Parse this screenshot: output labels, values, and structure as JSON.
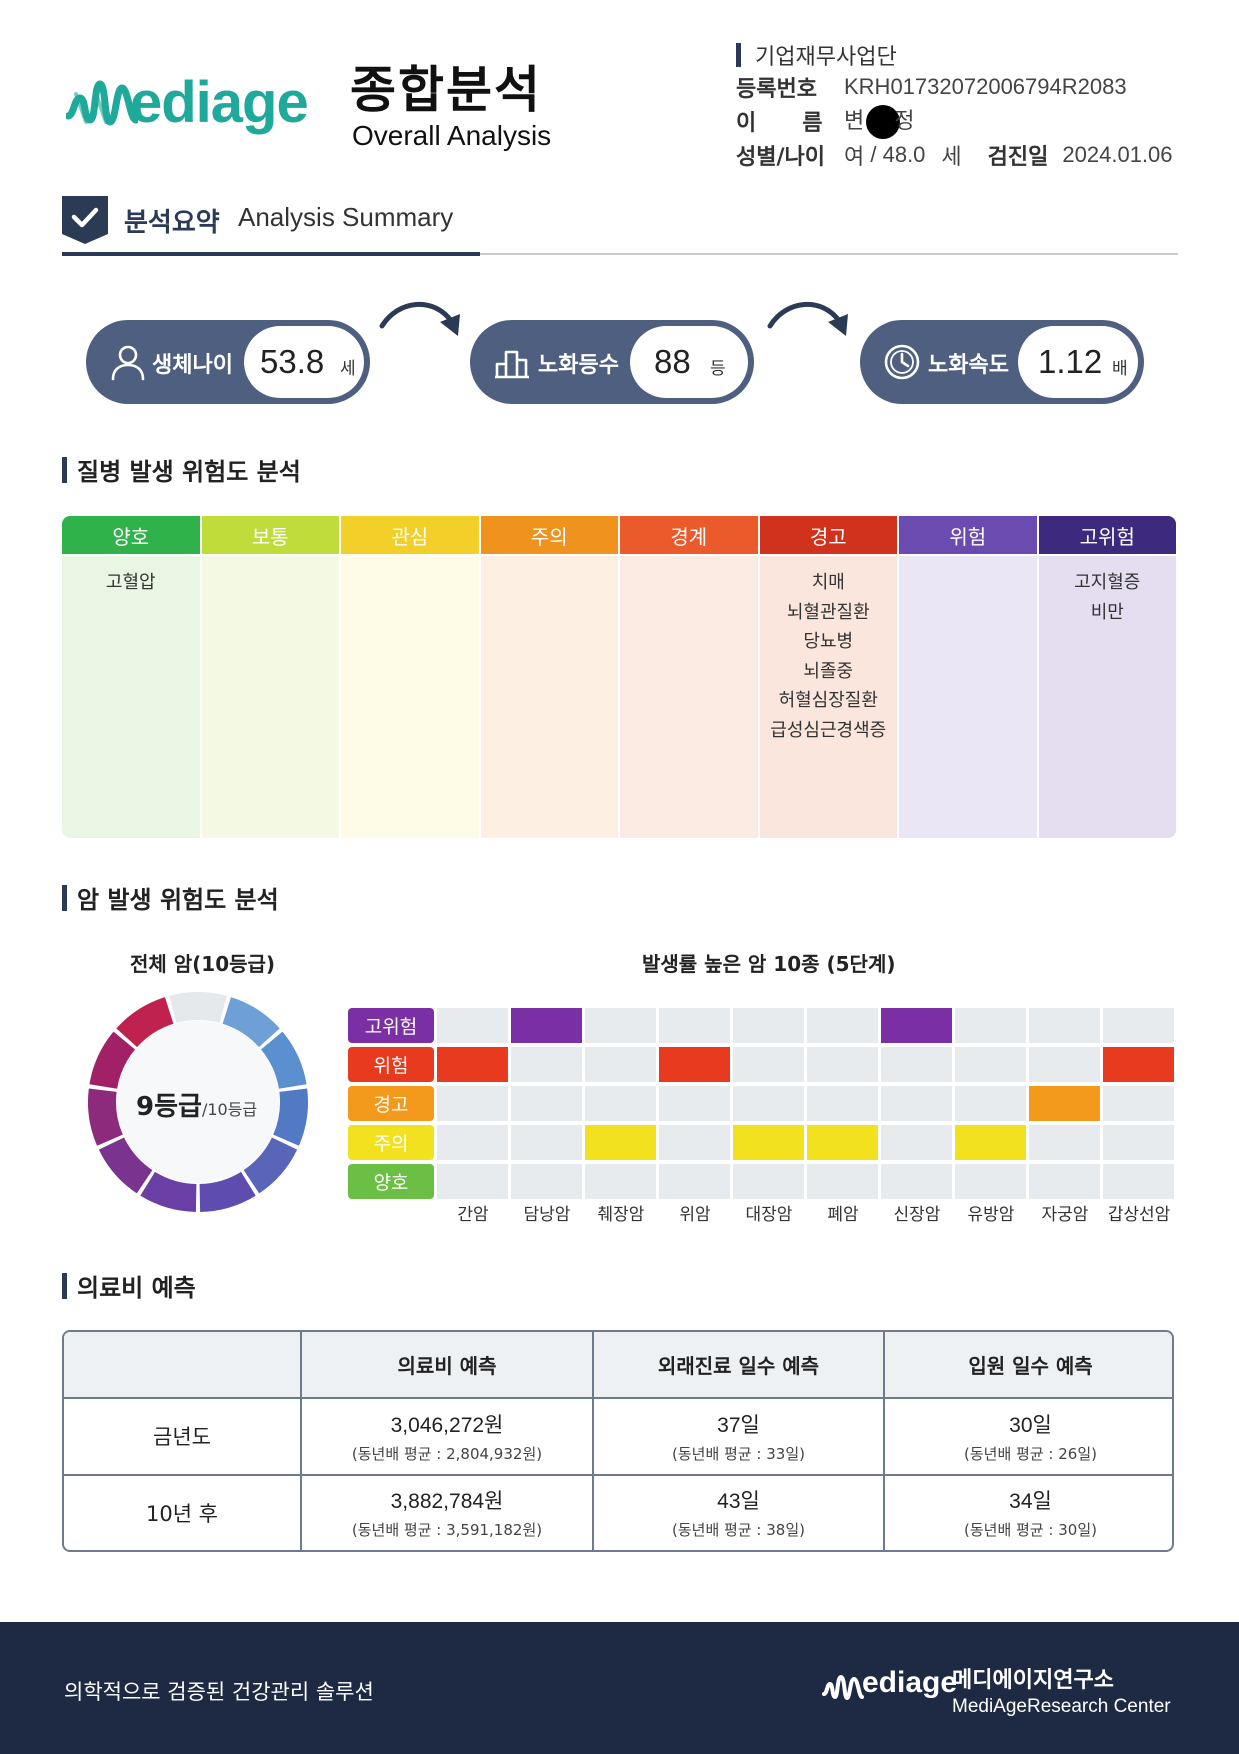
{
  "header": {
    "logo_text": "ediage",
    "title_ko": "종합분석",
    "title_en": "Overall Analysis"
  },
  "info": {
    "organization": "기업재무사업단",
    "reg_label": "등록번호",
    "reg_value": "KRH01732072006794R2083",
    "name_label": "이      름",
    "name_first": "변",
    "name_last": "정",
    "sex_age_label": "성별/나이",
    "sex": "여",
    "age": "48.0",
    "age_unit": "세",
    "checkup_label": "검진일",
    "checkup_date": "2024.01.06"
  },
  "summary": {
    "title_ko": "분석요약",
    "title_en": "Analysis Summary",
    "bio_age_label": "생체나이",
    "bio_age_value": "53.8",
    "bio_age_unit": "세",
    "aging_grade_label": "노화등수",
    "aging_grade_value": "88",
    "aging_grade_unit": "등",
    "aging_speed_label": "노화속도",
    "aging_speed_value": "1.12",
    "aging_speed_unit": "배"
  },
  "disease_risk": {
    "title": "질병 발생 위험도 분석",
    "levels": [
      {
        "label": "양호",
        "color": "#2fb24a",
        "bg": "#eaf6e4",
        "items": [
          "고혈압"
        ]
      },
      {
        "label": "보통",
        "color": "#bfdc3a",
        "bg": "#f4f9e4",
        "items": []
      },
      {
        "label": "관심",
        "color": "#f3cf2a",
        "bg": "#fefbe6",
        "items": []
      },
      {
        "label": "주의",
        "color": "#f0921e",
        "bg": "#fdf0e2",
        "items": []
      },
      {
        "label": "경계",
        "color": "#ea5a2b",
        "bg": "#fbebe2",
        "items": []
      },
      {
        "label": "경고",
        "color": "#d0321d",
        "bg": "#fae6dd",
        "items": [
          "치매",
          "뇌혈관질환",
          "당뇨병",
          "뇌졸중",
          "허혈심장질환",
          "급성심근경색증"
        ]
      },
      {
        "label": "위험",
        "color": "#6c4bb0",
        "bg": "#ebe6f6",
        "items": []
      },
      {
        "label": "고위험",
        "color": "#3d2a7e",
        "bg": "#e4def0",
        "items": [
          "고지혈증",
          "비만"
        ]
      }
    ]
  },
  "cancer_risk": {
    "title": "암 발생 위험도 분석",
    "overall_title": "전체 암(10등급)",
    "grade_value": "9등급",
    "grade_total": "/10등급",
    "grade_num": 9,
    "grade_max": 10,
    "top10_title": "발생률 높은 암 10종 (5단계)",
    "levels": [
      {
        "label": "고위험",
        "color": "#7b2fa5"
      },
      {
        "label": "위험",
        "color": "#e83a1e"
      },
      {
        "label": "경고",
        "color": "#f39a1c"
      },
      {
        "label": "주의",
        "color": "#f2e11e"
      },
      {
        "label": "양호",
        "color": "#6bbf44"
      }
    ],
    "cancers": [
      "간암",
      "담낭암",
      "췌장암",
      "위암",
      "대장암",
      "폐암",
      "신장암",
      "유방암",
      "자궁암",
      "갑상선암"
    ],
    "cancer_levels": [
      "위험",
      "고위험",
      "주의",
      "위험",
      "주의",
      "주의",
      "고위험",
      "주의",
      "경고",
      "위험"
    ]
  },
  "medical_cost": {
    "title": "의료비 예측",
    "headers": [
      "",
      "의료비 예측",
      "외래진료 일수 예측",
      "입원 일수 예측"
    ],
    "rows": [
      {
        "label": "금년도",
        "cost": "3,046,272원",
        "cost_avg": "(동년배 평균 : 2,804,932원)",
        "outpatient": "37일",
        "outpatient_avg": "(동년배 평균 : 33일)",
        "inpatient": "30일",
        "inpatient_avg": "(동년배 평균 : 26일)"
      },
      {
        "label": "10년 후",
        "cost": "3,882,784원",
        "cost_avg": "(동년배 평균 : 3,591,182원)",
        "outpatient": "43일",
        "outpatient_avg": "(동년배 평균 : 38일)",
        "inpatient": "34일",
        "inpatient_avg": "(동년배 평균 : 30일)"
      }
    ]
  },
  "footer": {
    "slogan": "의학적으로 검증된 건강관리 솔루션",
    "logo_text": "ediage",
    "org_ko": "메디에이지연구소",
    "org_en": "MediAgeResearch Center"
  },
  "colors": {
    "navy": "#2b3a55",
    "pill": "#4e5f80",
    "teal": "#1fa99b",
    "footer": "#1e2a44"
  }
}
